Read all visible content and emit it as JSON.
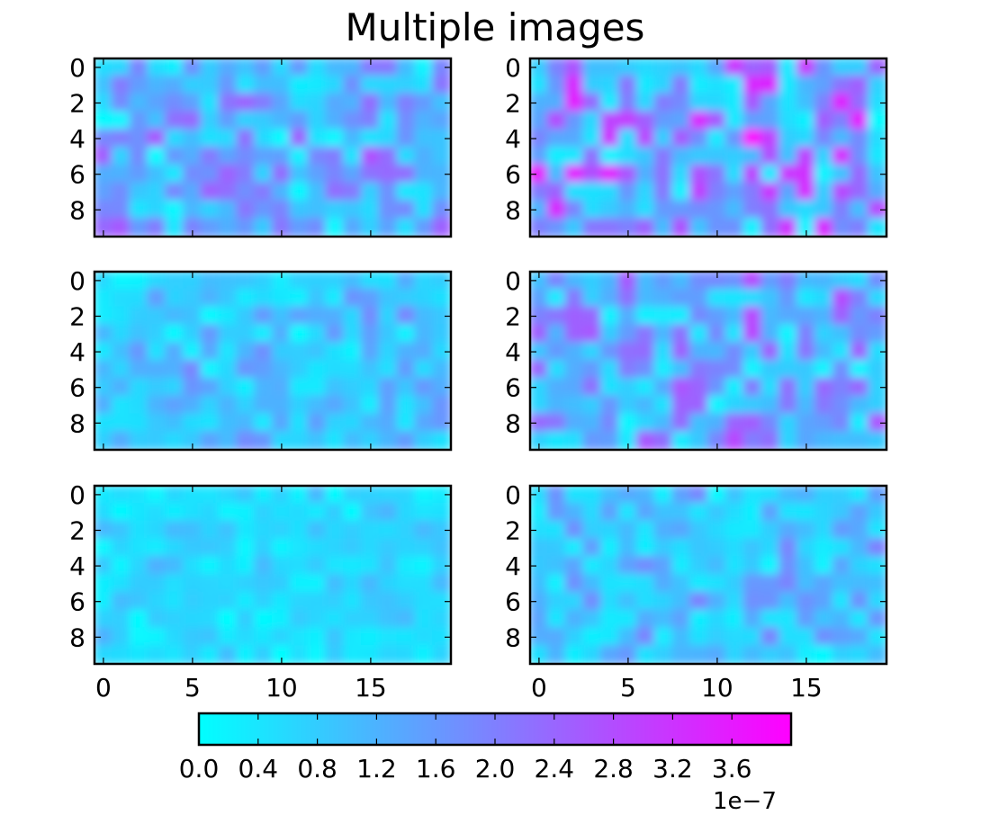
{
  "title": "Multiple images",
  "chart_data": [
    {
      "type": "heatmap",
      "rows": 10,
      "cols": 20,
      "panel": "top-left",
      "xticks": [
        "0",
        "5",
        "10",
        "15"
      ],
      "yticks": [
        "0",
        "2",
        "4",
        "6",
        "8"
      ],
      "show_xticklabels": false,
      "value_range": [
        0.0,
        4e-07
      ],
      "seed": 11,
      "scale": 0.55
    },
    {
      "type": "heatmap",
      "rows": 10,
      "cols": 20,
      "panel": "top-right",
      "xticks": [
        "0",
        "5",
        "10",
        "15"
      ],
      "yticks": [
        "0",
        "2",
        "4",
        "6",
        "8"
      ],
      "show_xticklabels": false,
      "value_range": [
        0.0,
        4e-07
      ],
      "seed": 23,
      "scale": 0.85
    },
    {
      "type": "heatmap",
      "rows": 10,
      "cols": 20,
      "panel": "middle-left",
      "xticks": [
        "0",
        "5",
        "10",
        "15"
      ],
      "yticks": [
        "0",
        "2",
        "4",
        "6",
        "8"
      ],
      "show_xticklabels": false,
      "value_range": [
        0.0,
        4e-07
      ],
      "seed": 37,
      "scale": 0.35
    },
    {
      "type": "heatmap",
      "rows": 10,
      "cols": 20,
      "panel": "middle-right",
      "xticks": [
        "0",
        "5",
        "10",
        "15"
      ],
      "yticks": [
        "0",
        "2",
        "4",
        "6",
        "8"
      ],
      "show_xticklabels": false,
      "value_range": [
        0.0,
        4e-07
      ],
      "seed": 51,
      "scale": 0.6
    },
    {
      "type": "heatmap",
      "rows": 10,
      "cols": 20,
      "panel": "bottom-left",
      "xticks": [
        "0",
        "5",
        "10",
        "15"
      ],
      "yticks": [
        "0",
        "2",
        "4",
        "6",
        "8"
      ],
      "show_xticklabels": true,
      "value_range": [
        0.0,
        4e-07
      ],
      "seed": 67,
      "scale": 0.18
    },
    {
      "type": "heatmap",
      "rows": 10,
      "cols": 20,
      "panel": "bottom-right",
      "xticks": [
        "0",
        "5",
        "10",
        "15"
      ],
      "yticks": [
        "0",
        "2",
        "4",
        "6",
        "8"
      ],
      "show_xticklabels": true,
      "value_range": [
        0.0,
        4e-07
      ],
      "seed": 79,
      "scale": 0.38
    }
  ],
  "colorbar": {
    "colormap": "cool",
    "colors": [
      "#00ffff",
      "#ff00ff"
    ],
    "range": [
      0.0,
      4e-07
    ],
    "tick_labels": [
      "0.0",
      "0.4",
      "0.8",
      "1.2",
      "1.6",
      "2.0",
      "2.4",
      "2.8",
      "3.2",
      "3.6"
    ],
    "offset_label": "1e−7"
  }
}
